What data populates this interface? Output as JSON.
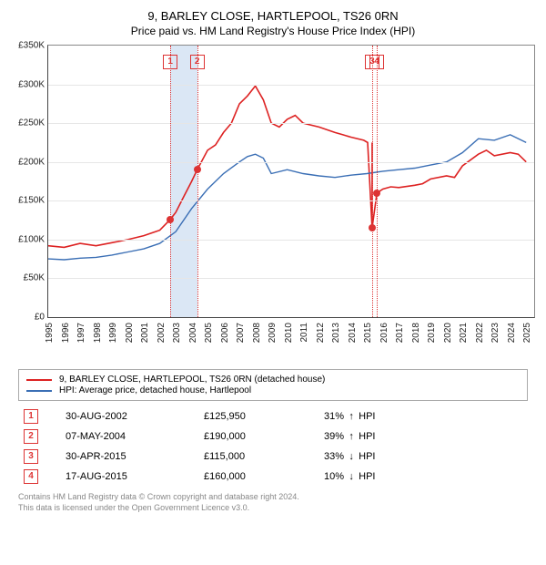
{
  "title": "9, BARLEY CLOSE, HARTLEPOOL, TS26 0RN",
  "subtitle": "Price paid vs. HM Land Registry's House Price Index (HPI)",
  "chart": {
    "type": "line",
    "ylim": [
      0,
      350000
    ],
    "ytick_step": 50000,
    "ylabels": [
      "£0",
      "£50K",
      "£100K",
      "£150K",
      "£200K",
      "£250K",
      "£300K",
      "£350K"
    ],
    "xlim": [
      1995,
      2025.5
    ],
    "xticks": [
      1995,
      1996,
      1997,
      1998,
      1999,
      2000,
      2001,
      2002,
      2003,
      2004,
      2005,
      2006,
      2007,
      2008,
      2009,
      2010,
      2011,
      2012,
      2013,
      2014,
      2015,
      2016,
      2017,
      2018,
      2019,
      2020,
      2021,
      2022,
      2023,
      2024,
      2025
    ],
    "background_color": "#ffffff",
    "grid_color": "#e6e6e6",
    "series": [
      {
        "name": "red",
        "color": "#dd2222",
        "width": 1.6,
        "points": [
          [
            1995,
            92000
          ],
          [
            1996,
            90000
          ],
          [
            1997,
            95000
          ],
          [
            1998,
            92000
          ],
          [
            1999,
            96000
          ],
          [
            2000,
            100000
          ],
          [
            2001,
            105000
          ],
          [
            2002,
            112000
          ],
          [
            2002.66,
            125950
          ],
          [
            2003,
            135000
          ],
          [
            2003.5,
            155000
          ],
          [
            2004,
            175000
          ],
          [
            2004.35,
            190000
          ],
          [
            2005,
            215000
          ],
          [
            2005.5,
            222000
          ],
          [
            2006,
            238000
          ],
          [
            2006.5,
            250000
          ],
          [
            2007,
            275000
          ],
          [
            2007.5,
            285000
          ],
          [
            2008,
            298000
          ],
          [
            2008.5,
            280000
          ],
          [
            2009,
            250000
          ],
          [
            2009.5,
            245000
          ],
          [
            2010,
            255000
          ],
          [
            2010.5,
            260000
          ],
          [
            2011,
            250000
          ],
          [
            2012,
            245000
          ],
          [
            2013,
            238000
          ],
          [
            2013.5,
            235000
          ],
          [
            2014,
            232000
          ],
          [
            2014.8,
            228000
          ],
          [
            2015.05,
            225000
          ],
          [
            2015.33,
            115000
          ],
          [
            2015.63,
            160000
          ],
          [
            2016,
            165000
          ],
          [
            2016.5,
            168000
          ],
          [
            2017,
            167000
          ],
          [
            2018,
            170000
          ],
          [
            2018.5,
            172000
          ],
          [
            2019,
            178000
          ],
          [
            2020,
            182000
          ],
          [
            2020.5,
            180000
          ],
          [
            2021,
            195000
          ],
          [
            2022,
            210000
          ],
          [
            2022.5,
            215000
          ],
          [
            2023,
            208000
          ],
          [
            2024,
            212000
          ],
          [
            2024.5,
            210000
          ],
          [
            2025,
            200000
          ]
        ]
      },
      {
        "name": "blue",
        "color": "#3b6fb5",
        "width": 1.4,
        "points": [
          [
            1995,
            75000
          ],
          [
            1996,
            74000
          ],
          [
            1997,
            76000
          ],
          [
            1998,
            77000
          ],
          [
            1999,
            80000
          ],
          [
            2000,
            84000
          ],
          [
            2001,
            88000
          ],
          [
            2002,
            95000
          ],
          [
            2003,
            110000
          ],
          [
            2004,
            140000
          ],
          [
            2005,
            165000
          ],
          [
            2006,
            185000
          ],
          [
            2007,
            200000
          ],
          [
            2007.5,
            207000
          ],
          [
            2008,
            210000
          ],
          [
            2008.5,
            205000
          ],
          [
            2009,
            185000
          ],
          [
            2010,
            190000
          ],
          [
            2011,
            185000
          ],
          [
            2012,
            182000
          ],
          [
            2013,
            180000
          ],
          [
            2014,
            183000
          ],
          [
            2015,
            185000
          ],
          [
            2016,
            188000
          ],
          [
            2017,
            190000
          ],
          [
            2018,
            192000
          ],
          [
            2019,
            196000
          ],
          [
            2020,
            200000
          ],
          [
            2021,
            212000
          ],
          [
            2022,
            230000
          ],
          [
            2023,
            228000
          ],
          [
            2024,
            235000
          ],
          [
            2025,
            225000
          ]
        ]
      }
    ],
    "markers": [
      {
        "n": "1",
        "x": 2002.66,
        "y": 125950
      },
      {
        "n": "2",
        "x": 2004.35,
        "y": 190000
      },
      {
        "n": "3",
        "x": 2015.33,
        "y": 115000
      },
      {
        "n": "4",
        "x": 2015.63,
        "y": 160000
      }
    ],
    "band": {
      "from": 2002.66,
      "to": 2004.35,
      "color": "#dbe7f5"
    }
  },
  "legend": {
    "items": [
      {
        "color": "#dd2222",
        "label": "9, BARLEY CLOSE, HARTLEPOOL, TS26 0RN (detached house)"
      },
      {
        "color": "#3b6fb5",
        "label": "HPI: Average price, detached house, Hartlepool"
      }
    ]
  },
  "sales": [
    {
      "n": "1",
      "date": "30-AUG-2002",
      "price": "£125,950",
      "pct": "31%",
      "dir": "↑",
      "suffix": "HPI"
    },
    {
      "n": "2",
      "date": "07-MAY-2004",
      "price": "£190,000",
      "pct": "39%",
      "dir": "↑",
      "suffix": "HPI"
    },
    {
      "n": "3",
      "date": "30-APR-2015",
      "price": "£115,000",
      "pct": "33%",
      "dir": "↓",
      "suffix": "HPI"
    },
    {
      "n": "4",
      "date": "17-AUG-2015",
      "price": "£160,000",
      "pct": "10%",
      "dir": "↓",
      "suffix": "HPI"
    }
  ],
  "footer": {
    "l1": "Contains HM Land Registry data © Crown copyright and database right 2024.",
    "l2": "This data is licensed under the Open Government Licence v3.0."
  }
}
